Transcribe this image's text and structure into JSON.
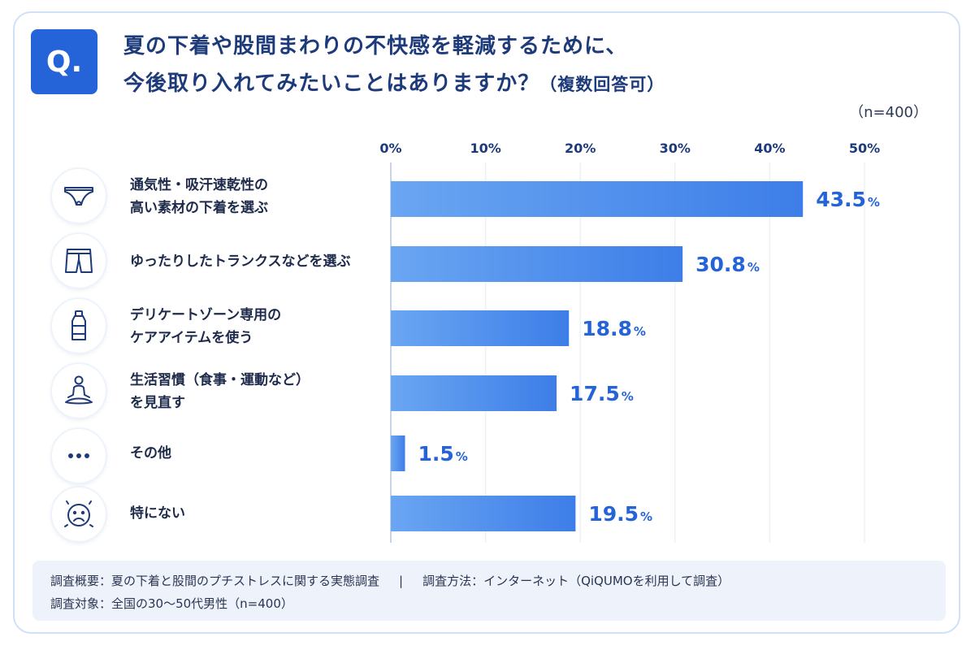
{
  "question": {
    "badge": "Q.",
    "title_line1": "夏の下着や股間まわりの不快感を軽減するために、",
    "title_line2": "今後取り入れてみたいことはありますか？",
    "title_suffix": "（複数回答可）",
    "sample": "（n=400）"
  },
  "chart_data": {
    "type": "bar",
    "orientation": "horizontal",
    "categories": [
      "通気性・吸汗速乾性の\n高い素材の下着を選ぶ",
      "ゆったりしたトランクスなどを選ぶ",
      "デリケートゾーン専用の\nケアアイテムを使う",
      "生活習慣（食事・運動など）\nを見直す",
      "その他",
      "特にない"
    ],
    "values": [
      43.5,
      30.8,
      18.8,
      17.5,
      1.5,
      19.5
    ],
    "value_labels": [
      "43.5",
      "30.8",
      "18.8",
      "17.5",
      "1.5",
      "19.5"
    ],
    "unit": "%",
    "xlim": [
      0,
      50
    ],
    "xticks": [
      "0%",
      "10%",
      "20%",
      "30%",
      "40%",
      "50%"
    ],
    "grid": true,
    "bar_color": "#3d7ee8",
    "label_color": "#2563d9"
  },
  "icons": [
    "briefs-icon",
    "trunks-icon",
    "bottle-icon",
    "meditation-icon",
    "more-dots-icon",
    "sad-face-icon"
  ],
  "footer": {
    "overview": "調査概要：夏の下着と股間のプチストレスに関する実態調査",
    "separator": "|",
    "method": "調査方法：インターネット（QiQUMOを利用して調査）",
    "target": "調査対象：全国の30〜50代男性（n=400）"
  }
}
